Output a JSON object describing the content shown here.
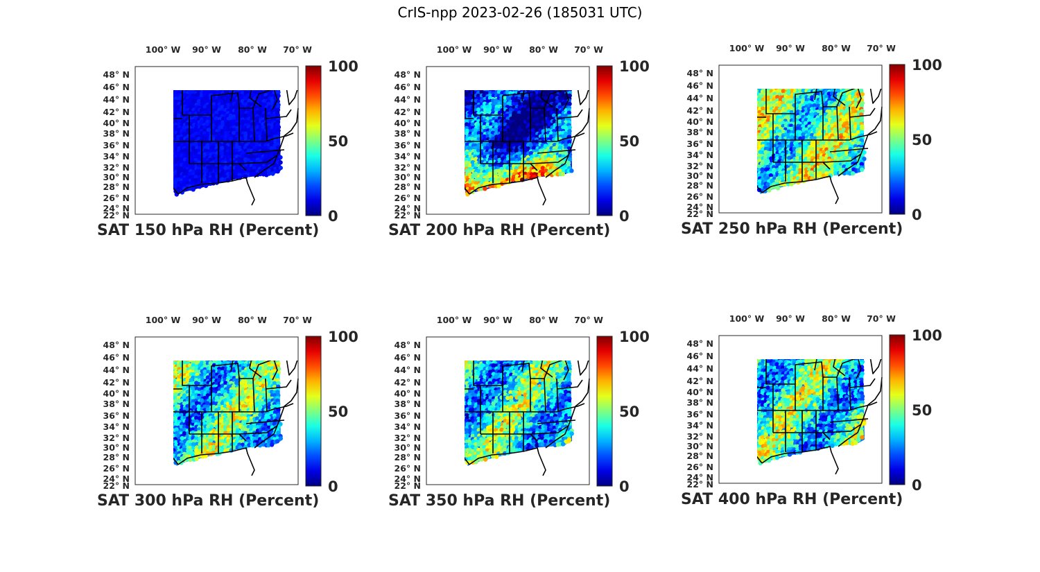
{
  "figure_title": "CrIS-npp 2023-02-26 (185031 UTC)",
  "colors": {
    "map_fill_low": "#00008f",
    "cmap": "jet",
    "state_lines": "#000000",
    "text": "#262626"
  },
  "lon_tick_labels": [
    "100° W",
    "90° W",
    "80° W",
    "70° W"
  ],
  "lat_tick_labels": [
    "48° N",
    "46° N",
    "44° N",
    "42° N",
    "40° N",
    "38° N",
    "36° N",
    "34° N",
    "32° N",
    "30° N",
    "28° N",
    "26° N",
    "24° N",
    "22° N"
  ],
  "colorbar_ticks": [
    "100",
    "50",
    "0"
  ],
  "panels": [
    {
      "title": "SAT 150 hPa RH (Percent)",
      "mean_rh": 8
    },
    {
      "title": "SAT 200 hPa RH (Percent)",
      "mean_rh": 20
    },
    {
      "title": "SAT 250 hPa RH (Percent)",
      "mean_rh": 45
    },
    {
      "title": "SAT 300 hPa RH (Percent)",
      "mean_rh": 40
    },
    {
      "title": "SAT 350 hPa RH (Percent)",
      "mean_rh": 38
    },
    {
      "title": "SAT 400 hPa RH (Percent)",
      "mean_rh": 40
    }
  ],
  "chart_data": {
    "type": "heatmap",
    "title": "CrIS-npp 2023-02-26 (185031 UTC)",
    "colorbar_range": [
      0,
      100
    ],
    "colormap": "jet",
    "lon_range": [
      -105,
      -67
    ],
    "lat_range": [
      22,
      50
    ],
    "panels": [
      "SAT 150 hPa RH (Percent)",
      "SAT 200 hPa RH (Percent)",
      "SAT 250 hPa RH (Percent)",
      "SAT 300 hPa RH (Percent)",
      "SAT 350 hPa RH (Percent)",
      "SAT 400 hPa RH (Percent)"
    ]
  }
}
